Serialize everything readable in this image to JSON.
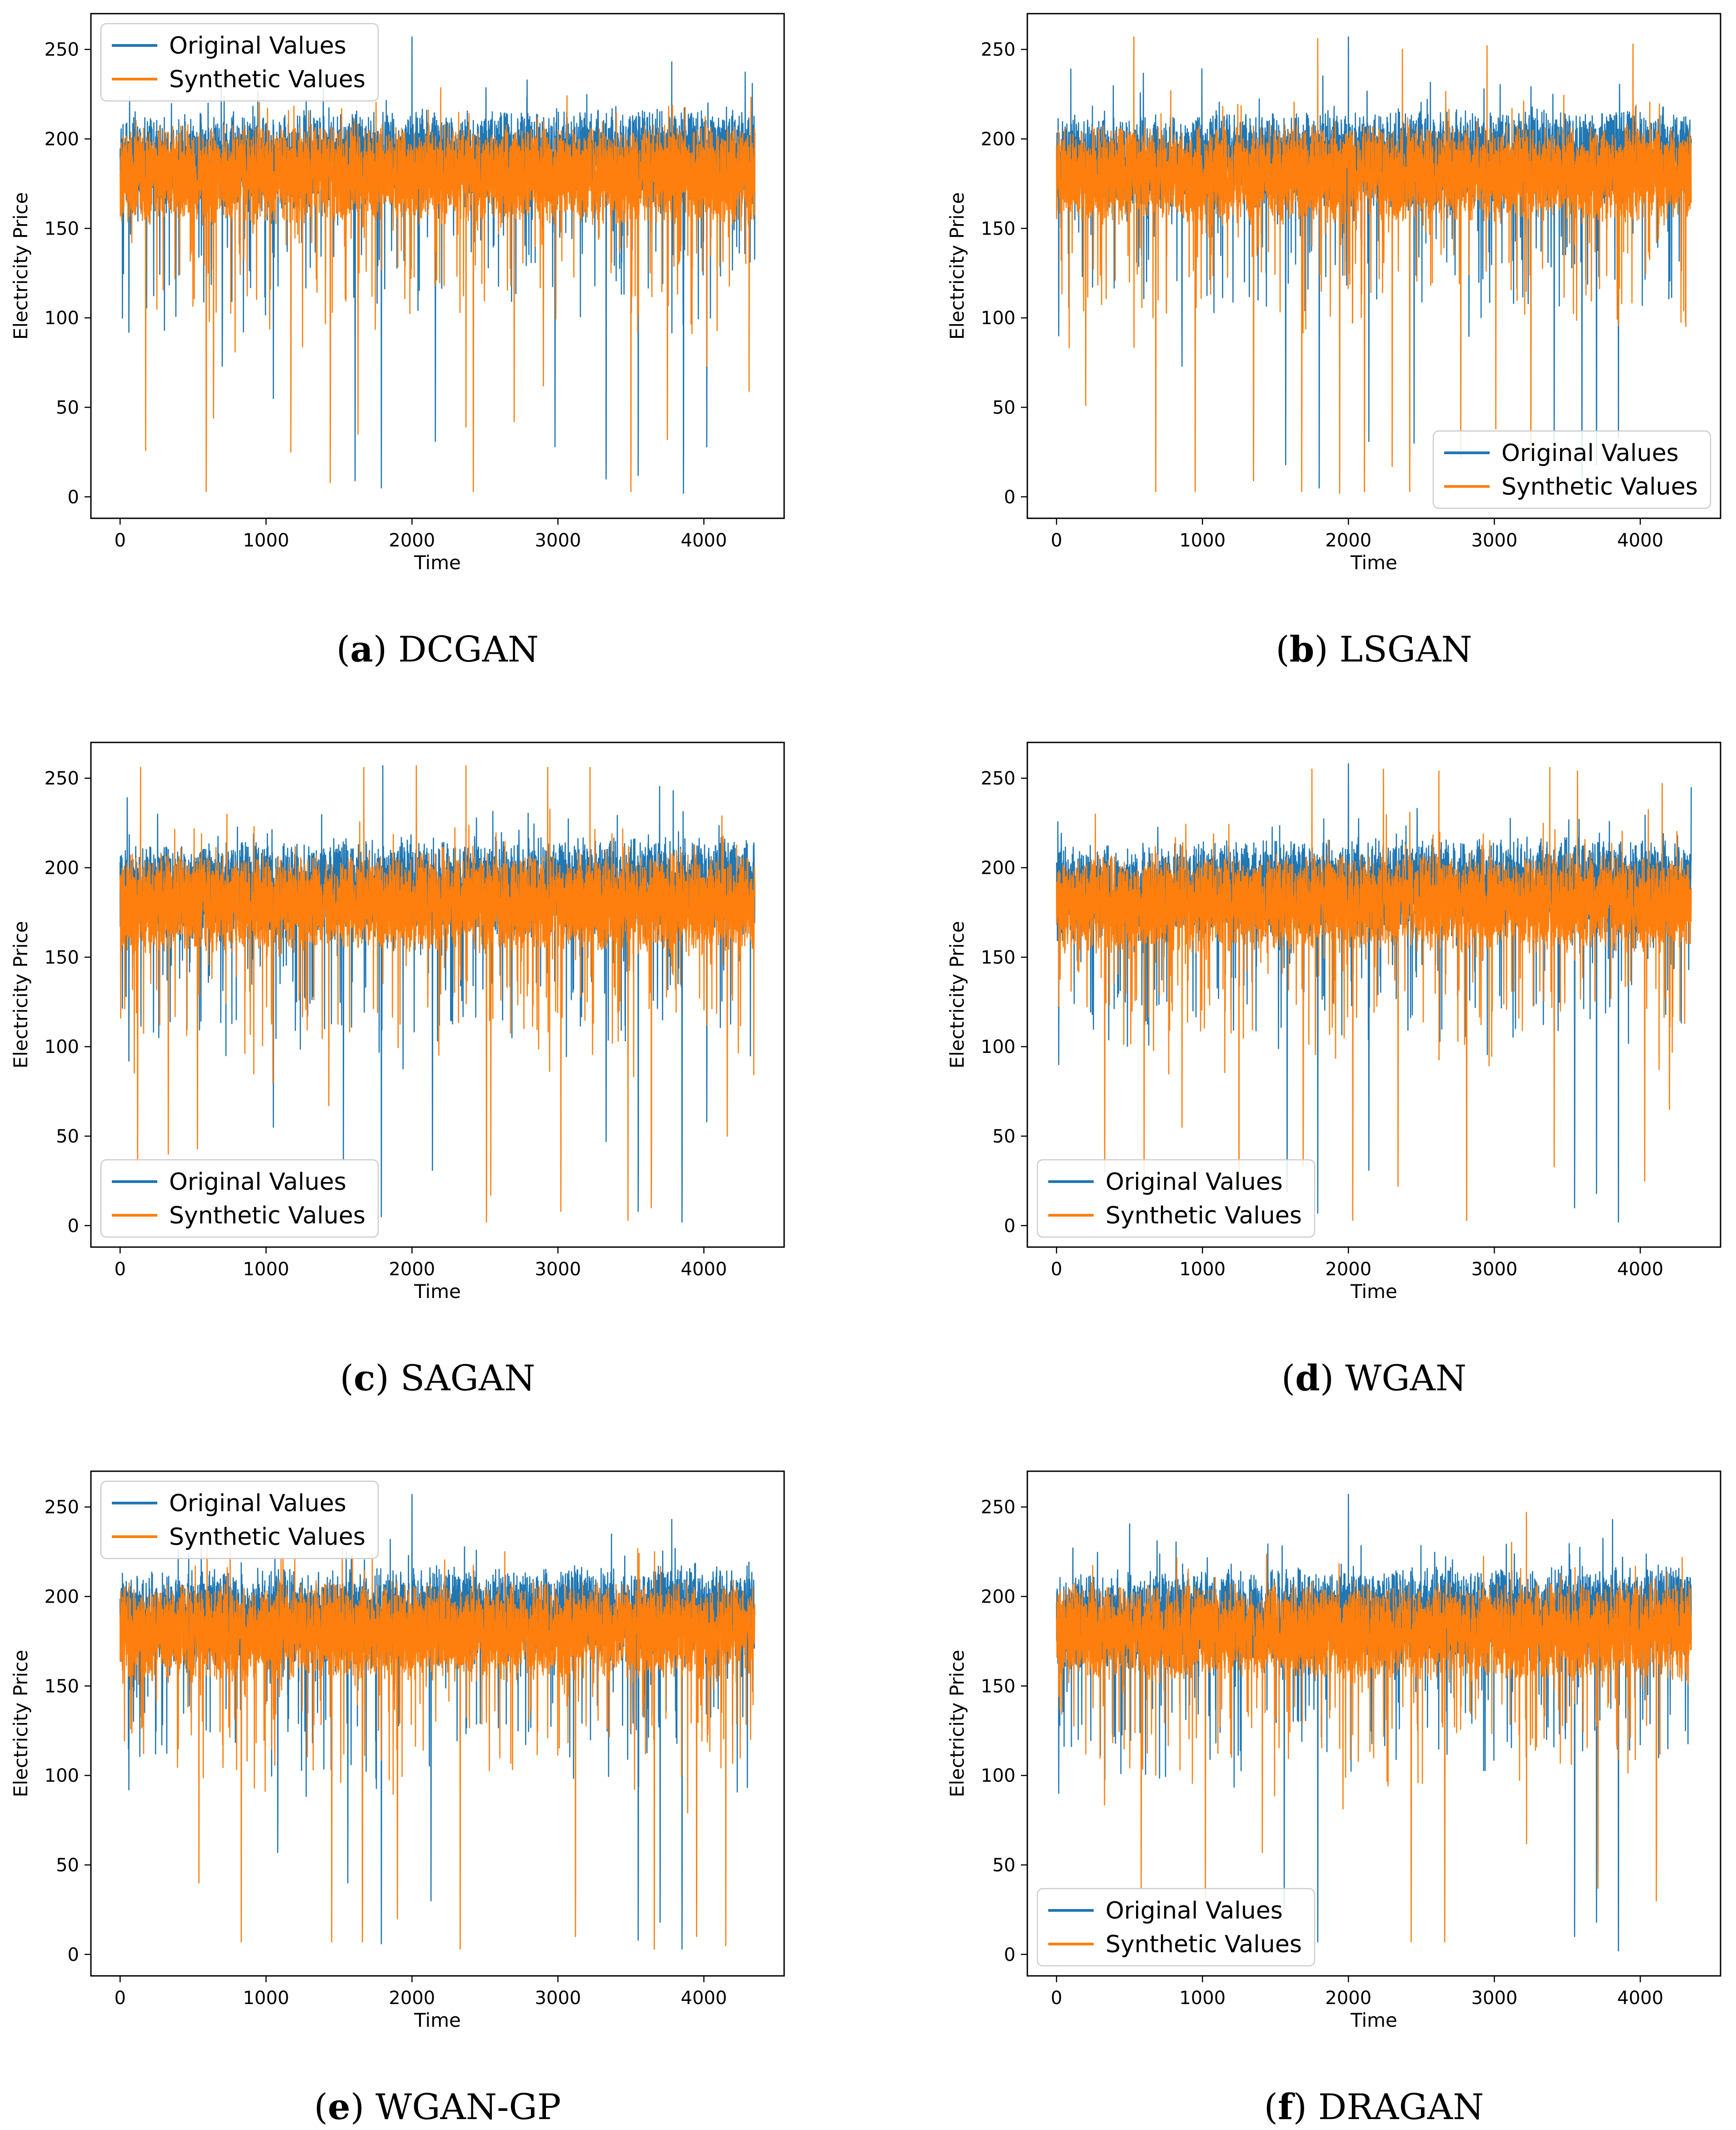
{
  "colors": {
    "original": "#1f77b4",
    "synthetic": "#ff7f0e"
  },
  "chart_data": [
    {
      "type": "line",
      "letter": "a",
      "caption_name": "DCGAN",
      "xlabel": "Time",
      "ylabel": "Electricity Price",
      "xlim": [
        -200,
        4550
      ],
      "ylim": [
        -12,
        270
      ],
      "xticks": [
        "0",
        "1000",
        "2000",
        "3000",
        "4000"
      ],
      "yticks": [
        "0",
        "50",
        "100",
        "150",
        "200",
        "250"
      ],
      "legend": {
        "position": "upper-left",
        "entries": [
          "Original Values",
          "Synthetic Values"
        ]
      },
      "series": [
        {
          "name": "Original Values",
          "n_points": 4350,
          "center": 186,
          "band": 20,
          "trend": 5,
          "dips": [
            [
              60,
              92
            ],
            [
              700,
              73
            ],
            [
              1050,
              55
            ],
            [
              1610,
              9
            ],
            [
              1790,
              5
            ],
            [
              2160,
              31
            ],
            [
              2980,
              28
            ],
            [
              3330,
              10
            ],
            [
              3550,
              12
            ],
            [
              3780,
              38
            ],
            [
              3860,
              2
            ],
            [
              4020,
              28
            ]
          ],
          "peaks": [
            [
              2000,
              257
            ],
            [
              3780,
              243
            ]
          ]
        },
        {
          "name": "Synthetic Values",
          "n_points": 4350,
          "center": 180,
          "band": 20,
          "trend": 0,
          "dips": [
            [
              175,
              26
            ],
            [
              590,
              3
            ],
            [
              640,
              44
            ],
            [
              1170,
              25
            ],
            [
              1440,
              8
            ],
            [
              1630,
              35
            ],
            [
              2370,
              39
            ],
            [
              2420,
              3
            ],
            [
              2700,
              42
            ],
            [
              2900,
              62
            ],
            [
              3500,
              3
            ],
            [
              3750,
              32
            ],
            [
              4020,
              73
            ],
            [
              4310,
              59
            ]
          ],
          "peaks": []
        }
      ]
    },
    {
      "type": "line",
      "letter": "b",
      "caption_name": "LSGAN",
      "xlabel": "Time",
      "ylabel": "Electricity Price",
      "xlim": [
        -200,
        4550
      ],
      "ylim": [
        -12,
        270
      ],
      "xticks": [
        "0",
        "1000",
        "2000",
        "3000",
        "4000"
      ],
      "yticks": [
        "0",
        "50",
        "100",
        "150",
        "200",
        "250"
      ],
      "legend": {
        "position": "lower-right",
        "entries": [
          "Original Values",
          "Synthetic Values"
        ]
      },
      "series": [
        {
          "name": "Original Values",
          "n_points": 4350,
          "center": 186,
          "band": 20,
          "trend": 5,
          "dips": [
            [
              15,
              90
            ],
            [
              860,
              73
            ],
            [
              1570,
              18
            ],
            [
              1800,
              5
            ],
            [
              2140,
              31
            ],
            [
              2450,
              30
            ],
            [
              3410,
              28
            ],
            [
              3600,
              10
            ],
            [
              3700,
              18
            ],
            [
              3850,
              33
            ]
          ],
          "peaks": [
            [
              2000,
              257
            ]
          ]
        },
        {
          "name": "Synthetic Values",
          "n_points": 4350,
          "center": 180,
          "band": 20,
          "trend": 0,
          "dips": [
            [
              200,
              51
            ],
            [
              530,
              35
            ],
            [
              680,
              3
            ],
            [
              950,
              3
            ],
            [
              1350,
              9
            ],
            [
              1680,
              3
            ],
            [
              1940,
              2
            ],
            [
              2110,
              3
            ],
            [
              2300,
              17
            ],
            [
              2420,
              3
            ],
            [
              2770,
              22
            ],
            [
              3010,
              38
            ],
            [
              3250,
              20
            ]
          ],
          "peaks": [
            [
              530,
              257
            ],
            [
              1790,
              256
            ],
            [
              2370,
              250
            ],
            [
              2950,
              252
            ],
            [
              3950,
              253
            ]
          ]
        }
      ]
    },
    {
      "type": "line",
      "letter": "c",
      "caption_name": "SAGAN",
      "xlabel": "Time",
      "ylabel": "Electricity Price",
      "xlim": [
        -200,
        4550
      ],
      "ylim": [
        -12,
        270
      ],
      "xticks": [
        "0",
        "1000",
        "2000",
        "3000",
        "4000"
      ],
      "yticks": [
        "0",
        "50",
        "100",
        "150",
        "200",
        "250"
      ],
      "legend": {
        "position": "lower-left",
        "entries": [
          "Original Values",
          "Synthetic Values"
        ]
      },
      "series": [
        {
          "name": "Original Values",
          "n_points": 4350,
          "center": 186,
          "band": 20,
          "trend": 5,
          "dips": [
            [
              60,
              92
            ],
            [
              1050,
              55
            ],
            [
              1530,
              37
            ],
            [
              1790,
              5
            ],
            [
              2140,
              31
            ],
            [
              3330,
              47
            ],
            [
              3550,
              8
            ],
            [
              3850,
              2
            ],
            [
              4020,
              58
            ]
          ],
          "peaks": [
            [
              1800,
              257
            ],
            [
              3790,
              243
            ]
          ]
        },
        {
          "name": "Synthetic Values",
          "n_points": 4350,
          "center": 180,
          "band": 20,
          "trend": 0,
          "dips": [
            [
              120,
              35
            ],
            [
              330,
              40
            ],
            [
              530,
              43
            ],
            [
              1430,
              67
            ],
            [
              2510,
              2
            ],
            [
              2540,
              17
            ],
            [
              3020,
              8
            ],
            [
              3480,
              3
            ],
            [
              3640,
              10
            ],
            [
              4160,
              50
            ]
          ],
          "peaks": [
            [
              1670,
              256
            ],
            [
              2030,
              257
            ],
            [
              2370,
              257
            ],
            [
              2930,
              256
            ],
            [
              3220,
              256
            ],
            [
              140,
              256
            ]
          ]
        }
      ]
    },
    {
      "type": "line",
      "letter": "d",
      "caption_name": "WGAN",
      "xlabel": "Time",
      "ylabel": "Electricity Price",
      "xlim": [
        -200,
        4550
      ],
      "ylim": [
        -12,
        270
      ],
      "xticks": [
        "0",
        "1000",
        "2000",
        "3000",
        "4000"
      ],
      "yticks": [
        "0",
        "50",
        "100",
        "150",
        "200",
        "250"
      ],
      "legend": {
        "position": "lower-left",
        "entries": [
          "Original Values",
          "Synthetic Values"
        ]
      },
      "series": [
        {
          "name": "Original Values",
          "n_points": 4350,
          "center": 186,
          "band": 20,
          "trend": 5,
          "dips": [
            [
              15,
              90
            ],
            [
              1580,
              19
            ],
            [
              1790,
              7
            ],
            [
              2140,
              31
            ],
            [
              3550,
              10
            ],
            [
              3700,
              18
            ],
            [
              3850,
              2
            ]
          ],
          "peaks": [
            [
              2000,
              258
            ]
          ]
        },
        {
          "name": "Synthetic Values",
          "n_points": 4350,
          "center": 180,
          "band": 20,
          "trend": 0,
          "dips": [
            [
              330,
              30
            ],
            [
              600,
              25
            ],
            [
              860,
              55
            ],
            [
              1250,
              20
            ],
            [
              1690,
              33
            ],
            [
              2030,
              3
            ],
            [
              2340,
              22
            ],
            [
              2810,
              3
            ],
            [
              3410,
              33
            ],
            [
              4030,
              25
            ],
            [
              4200,
              65
            ]
          ],
          "peaks": [
            [
              1750,
              255
            ],
            [
              2240,
              255
            ],
            [
              2620,
              254
            ],
            [
              3380,
              256
            ],
            [
              3570,
              254
            ],
            [
              4150,
              247
            ]
          ]
        }
      ]
    },
    {
      "type": "line",
      "letter": "e",
      "caption_name": "WGAN-GP",
      "xlabel": "Time",
      "ylabel": "Electricity Price",
      "xlim": [
        -200,
        4550
      ],
      "ylim": [
        -12,
        270
      ],
      "xticks": [
        "0",
        "1000",
        "2000",
        "3000",
        "4000"
      ],
      "yticks": [
        "0",
        "50",
        "100",
        "150",
        "200",
        "250"
      ],
      "legend": {
        "position": "upper-left",
        "entries": [
          "Original Values",
          "Synthetic Values"
        ]
      },
      "series": [
        {
          "name": "Original Values",
          "n_points": 4350,
          "center": 186,
          "band": 20,
          "trend": 5,
          "dips": [
            [
              60,
              92
            ],
            [
              1080,
              57
            ],
            [
              1560,
              40
            ],
            [
              1790,
              6
            ],
            [
              2130,
              30
            ],
            [
              3550,
              8
            ],
            [
              3700,
              18
            ],
            [
              3850,
              3
            ]
          ],
          "peaks": [
            [
              2000,
              257
            ],
            [
              3780,
              243
            ]
          ]
        },
        {
          "name": "Synthetic Values",
          "n_points": 4350,
          "center": 180,
          "band": 20,
          "trend": 0,
          "dips": [
            [
              540,
              40
            ],
            [
              830,
              7
            ],
            [
              1450,
              7
            ],
            [
              1660,
              7
            ],
            [
              1900,
              20
            ],
            [
              2330,
              3
            ],
            [
              3120,
              10
            ],
            [
              3660,
              3
            ],
            [
              3950,
              10
            ],
            [
              4150,
              5
            ]
          ],
          "peaks": []
        }
      ]
    },
    {
      "type": "line",
      "letter": "f",
      "caption_name": "DRAGAN",
      "xlabel": "Time",
      "ylabel": "Electricity Price",
      "xlim": [
        -200,
        4550
      ],
      "ylim": [
        -12,
        270
      ],
      "xticks": [
        "0",
        "1000",
        "2000",
        "3000",
        "4000"
      ],
      "yticks": [
        "0",
        "50",
        "100",
        "150",
        "200",
        "250"
      ],
      "legend": {
        "position": "lower-left",
        "entries": [
          "Original Values",
          "Synthetic Values"
        ]
      },
      "series": [
        {
          "name": "Original Values",
          "n_points": 4350,
          "center": 186,
          "band": 20,
          "trend": 5,
          "dips": [
            [
              15,
              90
            ],
            [
              1560,
              25
            ],
            [
              1790,
              7
            ],
            [
              3550,
              10
            ],
            [
              3700,
              18
            ],
            [
              3850,
              2
            ]
          ],
          "peaks": [
            [
              2000,
              257
            ],
            [
              3810,
              243
            ]
          ]
        },
        {
          "name": "Synthetic Values",
          "n_points": 4350,
          "center": 180,
          "band": 20,
          "trend": 0,
          "dips": [
            [
              580,
              37
            ],
            [
              1020,
              30
            ],
            [
              1410,
              57
            ],
            [
              2430,
              7
            ],
            [
              2660,
              7
            ],
            [
              3220,
              3
            ],
            [
              3710,
              37
            ],
            [
              4110,
              30
            ]
          ],
          "peaks": [
            [
              3220,
              247
            ]
          ]
        }
      ]
    }
  ]
}
